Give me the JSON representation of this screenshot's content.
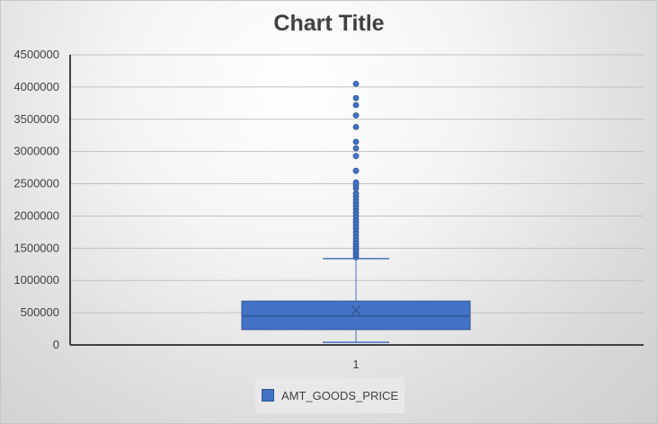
{
  "chart_data": {
    "type": "box",
    "title": "Chart Title",
    "categories": [
      "1"
    ],
    "ylim": [
      0,
      4500000
    ],
    "yticks": [
      0,
      500000,
      1000000,
      1500000,
      2000000,
      2500000,
      3000000,
      3500000,
      4000000,
      4500000
    ],
    "grid": true,
    "legend_position": "bottom",
    "series": [
      {
        "name": "AMT_GOODS_PRICE",
        "color": "#4472c4",
        "whisker_low": 40000,
        "q1": 238000,
        "median": 450000,
        "mean": 538000,
        "q3": 680000,
        "whisker_high": 1340000,
        "outliers": [
          1360000,
          1400000,
          1440000,
          1480000,
          1520000,
          1560000,
          1600000,
          1650000,
          1700000,
          1750000,
          1800000,
          1850000,
          1900000,
          1950000,
          2000000,
          2050000,
          2100000,
          2150000,
          2200000,
          2250000,
          2300000,
          2350000,
          2430000,
          2480000,
          2520000,
          2700000,
          2930000,
          3050000,
          3150000,
          3380000,
          3560000,
          3720000,
          3830000,
          4050000
        ]
      }
    ]
  }
}
